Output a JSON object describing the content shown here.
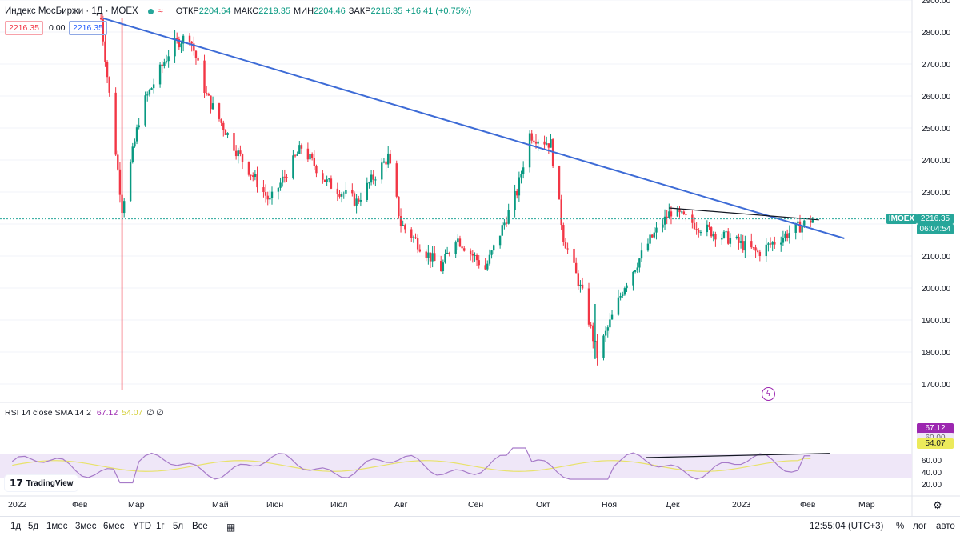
{
  "header": {
    "title": "Индекс МосБиржи · 1Д · MOEX",
    "wave_glyph": "≈",
    "open_label": "ОТКР",
    "open": "2204.64",
    "high_label": "МАКС",
    "high": "2219.35",
    "low_label": "МИН",
    "low": "2204.46",
    "close_label": "ЗАКР",
    "close": "2216.35",
    "change": "+16.41 (+0.75%)",
    "box_left": "2216.35",
    "box_mid": "0.00",
    "box_right": "2216.35"
  },
  "price_axis": {
    "labels": [
      "2900.00",
      "2800.00",
      "2700.00",
      "2600.00",
      "2500.00",
      "2400.00",
      "2300.00",
      "2200.00",
      "2100.00",
      "2000.00",
      "1900.00",
      "1800.00",
      "1700.00"
    ],
    "symbol_tag": "IMOEX",
    "last_price": "2216.35",
    "countdown": "06:04:54"
  },
  "rsi": {
    "title": "RSI 14 close SMA 14 2",
    "value": "67.12",
    "sma_value": "54.07",
    "extra": "∅ ∅",
    "axis_labels": [
      "60.00",
      "40.00",
      "20.00"
    ],
    "tag_rsi": "67.12",
    "tag_mid": "60.00",
    "tag_sma": "54.07"
  },
  "time_axis": [
    "2022",
    "Фев",
    "Мар",
    "Май",
    "Июн",
    "Июл",
    "Авг",
    "Сен",
    "Окт",
    "Ноя",
    "Дек",
    "2023",
    "Фев",
    "Мар"
  ],
  "watermark": "TradingView",
  "toolbar": {
    "ranges": [
      "1д",
      "5д",
      "1мес",
      "3мес",
      "6мес",
      "YTD",
      "1г",
      "5л",
      "Все"
    ],
    "clock": "12:55:04 (UTC+3)",
    "percent": "%",
    "log": "лог",
    "auto": "авто"
  },
  "colors": {
    "up": "#089981",
    "down": "#f23645",
    "trendline": "#3d6bd6",
    "rsi_line": "#a77bc9",
    "rsi_sma": "#e8e26b",
    "rsi_band": "#efe7f8"
  },
  "chart_data": {
    "type": "candlestick",
    "symbol": "IMOEX",
    "ylim": [
      1650,
      2930
    ],
    "trendlines": [
      {
        "kind": "descending",
        "from": {
          "date": "2022-02-15",
          "price": 2843
        },
        "to": {
          "date": "2023-02-01",
          "price": 2155
        }
      },
      {
        "kind": "resistance",
        "from": {
          "date": "2022-11-10",
          "price": 2250
        },
        "to": {
          "date": "2023-01-20",
          "price": 2213
        }
      }
    ],
    "key_points": [
      {
        "date": "2022-02-24",
        "low": 1681
      },
      {
        "date": "2022-03-25",
        "high": 2800
      },
      {
        "date": "2022-09-01",
        "high": 2492
      },
      {
        "date": "2022-10-06",
        "low": 1778
      },
      {
        "date": "2023-01-17",
        "close": 2216.35
      }
    ],
    "rsi_current": 67.12,
    "rsi_sma_current": 54.07
  }
}
